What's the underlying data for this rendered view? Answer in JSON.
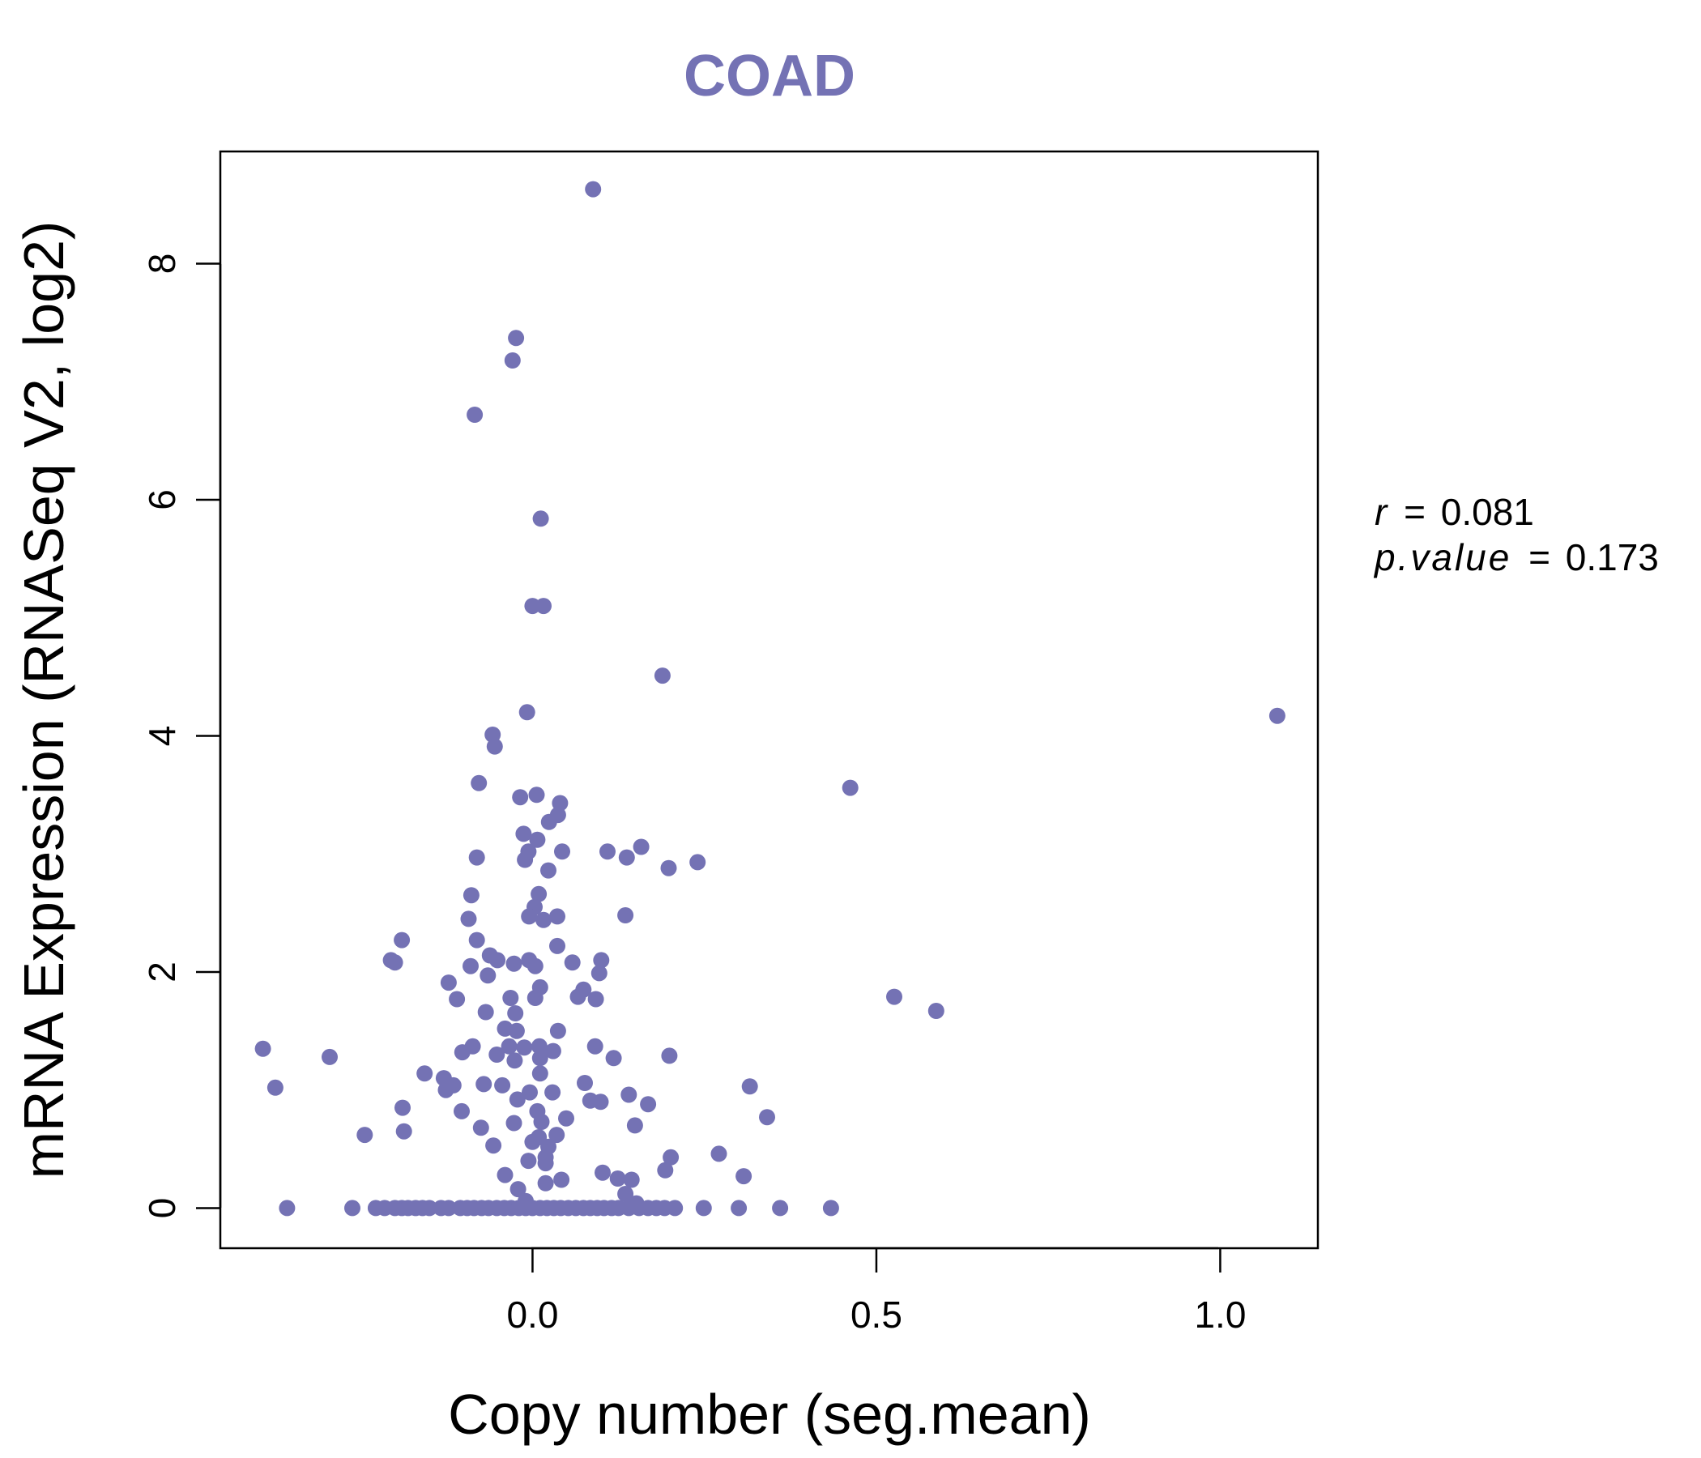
{
  "colors": {
    "accent": "#7472b4",
    "axis": "#000000",
    "text": "#000000",
    "background": "#ffffff"
  },
  "chart_data": {
    "type": "scatter",
    "title": "COAD",
    "xlabel": "Copy number (seg.mean)",
    "ylabel": "mRNA Expression (RNASeq V2, log2)",
    "xlim": [
      -0.454,
      1.142
    ],
    "ylim": [
      -0.34,
      8.95
    ],
    "x_ticks": [
      0.0,
      0.5,
      1.0
    ],
    "x_tick_labels": [
      "0.0",
      "0.5",
      "1.0"
    ],
    "y_ticks": [
      0,
      2,
      4,
      6,
      8
    ],
    "y_tick_labels": [
      "0",
      "2",
      "4",
      "6",
      "8"
    ],
    "grid": false,
    "stats": {
      "r_label": "r",
      "r_value": "0.081",
      "p_label": "p.value",
      "p_value": "0.173"
    },
    "points": [
      [
        0.088,
        8.63
      ],
      [
        -0.024,
        7.37
      ],
      [
        -0.029,
        7.18
      ],
      [
        -0.084,
        6.72
      ],
      [
        0.012,
        5.84
      ],
      [
        0.0,
        5.1
      ],
      [
        0.016,
        5.1
      ],
      [
        0.189,
        4.51
      ],
      [
        1.083,
        4.17
      ],
      [
        -0.008,
        4.2
      ],
      [
        -0.058,
        4.01
      ],
      [
        -0.055,
        3.91
      ],
      [
        0.462,
        3.56
      ],
      [
        -0.078,
        3.6
      ],
      [
        -0.018,
        3.48
      ],
      [
        0.006,
        3.5
      ],
      [
        0.04,
        3.43
      ],
      [
        0.037,
        3.33
      ],
      [
        0.024,
        3.27
      ],
      [
        -0.013,
        3.17
      ],
      [
        0.007,
        3.12
      ],
      [
        -0.006,
        3.02
      ],
      [
        0.109,
        3.02
      ],
      [
        0.158,
        3.06
      ],
      [
        0.043,
        3.02
      ],
      [
        -0.081,
        2.97
      ],
      [
        -0.011,
        2.95
      ],
      [
        0.137,
        2.97
      ],
      [
        0.198,
        2.88
      ],
      [
        0.24,
        2.93
      ],
      [
        0.023,
        2.86
      ],
      [
        -0.089,
        2.65
      ],
      [
        0.009,
        2.66
      ],
      [
        0.003,
        2.55
      ],
      [
        -0.093,
        2.45
      ],
      [
        -0.005,
        2.47
      ],
      [
        0.016,
        2.44
      ],
      [
        0.036,
        2.47
      ],
      [
        0.135,
        2.48
      ],
      [
        -0.19,
        2.27
      ],
      [
        -0.081,
        2.27
      ],
      [
        0.036,
        2.22
      ],
      [
        -0.206,
        2.1
      ],
      [
        -0.2,
        2.08
      ],
      [
        -0.062,
        2.14
      ],
      [
        -0.051,
        2.1
      ],
      [
        -0.09,
        2.05
      ],
      [
        -0.005,
        2.1
      ],
      [
        0.004,
        2.05
      ],
      [
        -0.027,
        2.07
      ],
      [
        0.058,
        2.08
      ],
      [
        0.1,
        2.1
      ],
      [
        0.097,
        1.99
      ],
      [
        -0.065,
        1.97
      ],
      [
        -0.122,
        1.91
      ],
      [
        0.011,
        1.87
      ],
      [
        0.074,
        1.85
      ],
      [
        0.066,
        1.79
      ],
      [
        0.092,
        1.77
      ],
      [
        0.004,
        1.78
      ],
      [
        -0.11,
        1.77
      ],
      [
        -0.032,
        1.78
      ],
      [
        0.526,
        1.79
      ],
      [
        0.587,
        1.67
      ],
      [
        -0.068,
        1.66
      ],
      [
        -0.025,
        1.65
      ],
      [
        -0.04,
        1.52
      ],
      [
        -0.023,
        1.5
      ],
      [
        0.037,
        1.5
      ],
      [
        -0.087,
        1.37
      ],
      [
        -0.034,
        1.37
      ],
      [
        -0.012,
        1.36
      ],
      [
        0.01,
        1.37
      ],
      [
        0.03,
        1.33
      ],
      [
        0.091,
        1.37
      ],
      [
        -0.052,
        1.3
      ],
      [
        -0.102,
        1.32
      ],
      [
        -0.026,
        1.25
      ],
      [
        0.011,
        1.27
      ],
      [
        0.118,
        1.27
      ],
      [
        0.199,
        1.29
      ],
      [
        -0.392,
        1.35
      ],
      [
        -0.295,
        1.28
      ],
      [
        -0.157,
        1.14
      ],
      [
        -0.129,
        1.1
      ],
      [
        -0.126,
        1.0
      ],
      [
        -0.115,
        1.04
      ],
      [
        -0.044,
        1.04
      ],
      [
        -0.071,
        1.05
      ],
      [
        0.011,
        1.14
      ],
      [
        0.076,
        1.06
      ],
      [
        0.316,
        1.03
      ],
      [
        -0.374,
        1.02
      ],
      [
        -0.004,
        0.98
      ],
      [
        0.029,
        0.98
      ],
      [
        -0.022,
        0.92
      ],
      [
        0.084,
        0.91
      ],
      [
        0.099,
        0.9
      ],
      [
        0.14,
        0.96
      ],
      [
        0.168,
        0.88
      ],
      [
        -0.189,
        0.85
      ],
      [
        -0.103,
        0.82
      ],
      [
        0.007,
        0.82
      ],
      [
        0.013,
        0.73
      ],
      [
        0.049,
        0.76
      ],
      [
        0.341,
        0.77
      ],
      [
        -0.027,
        0.72
      ],
      [
        -0.075,
        0.68
      ],
      [
        0.149,
        0.7
      ],
      [
        -0.187,
        0.65
      ],
      [
        -0.244,
        0.62
      ],
      [
        0.009,
        0.6
      ],
      [
        0.035,
        0.62
      ],
      [
        0.0,
        0.56
      ],
      [
        0.023,
        0.52
      ],
      [
        -0.057,
        0.53
      ],
      [
        0.271,
        0.46
      ],
      [
        0.201,
        0.43
      ],
      [
        0.019,
        0.43
      ],
      [
        -0.006,
        0.4
      ],
      [
        0.019,
        0.38
      ],
      [
        0.193,
        0.32
      ],
      [
        0.102,
        0.3
      ],
      [
        -0.04,
        0.28
      ],
      [
        0.124,
        0.25
      ],
      [
        0.144,
        0.24
      ],
      [
        0.042,
        0.24
      ],
      [
        0.307,
        0.27
      ],
      [
        0.019,
        0.21
      ],
      [
        0.135,
        0.12
      ],
      [
        -0.021,
        0.16
      ],
      [
        -0.01,
        0.06
      ],
      [
        0.151,
        0.04
      ],
      [
        -0.357,
        0.0
      ],
      [
        -0.262,
        0.0
      ],
      [
        -0.228,
        0.0
      ],
      [
        -0.215,
        0.0
      ],
      [
        -0.2,
        0.0
      ],
      [
        -0.19,
        0.0
      ],
      [
        -0.181,
        0.0
      ],
      [
        -0.17,
        0.0
      ],
      [
        -0.16,
        0.0
      ],
      [
        -0.15,
        0.0
      ],
      [
        -0.133,
        0.0
      ],
      [
        -0.122,
        0.0
      ],
      [
        -0.105,
        0.0
      ],
      [
        -0.095,
        0.0
      ],
      [
        -0.085,
        0.0
      ],
      [
        -0.074,
        0.0
      ],
      [
        -0.064,
        0.0
      ],
      [
        -0.052,
        0.0
      ],
      [
        -0.041,
        0.0
      ],
      [
        -0.031,
        0.0
      ],
      [
        -0.02,
        0.0
      ],
      [
        -0.01,
        0.0
      ],
      [
        0.0,
        0.0
      ],
      [
        0.011,
        0.0
      ],
      [
        0.021,
        0.0
      ],
      [
        0.031,
        0.0
      ],
      [
        0.041,
        0.0
      ],
      [
        0.052,
        0.0
      ],
      [
        0.063,
        0.0
      ],
      [
        0.074,
        0.0
      ],
      [
        0.084,
        0.0
      ],
      [
        0.094,
        0.0
      ],
      [
        0.104,
        0.0
      ],
      [
        0.115,
        0.0
      ],
      [
        0.125,
        0.0
      ],
      [
        0.14,
        0.0
      ],
      [
        0.155,
        0.0
      ],
      [
        0.168,
        0.0
      ],
      [
        0.18,
        0.0
      ],
      [
        0.192,
        0.0
      ],
      [
        0.207,
        0.0
      ],
      [
        0.249,
        0.0
      ],
      [
        0.3,
        0.0
      ],
      [
        0.36,
        0.0
      ],
      [
        0.434,
        0.0
      ]
    ]
  }
}
